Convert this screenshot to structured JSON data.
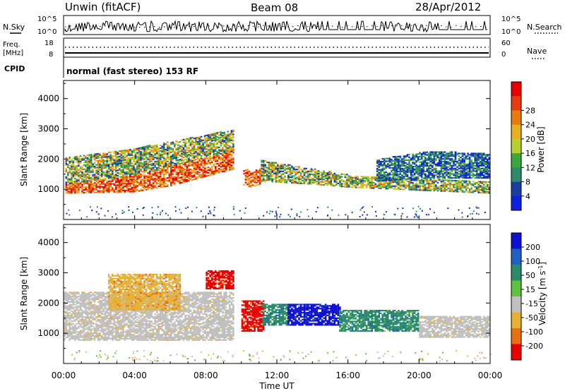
{
  "header": {
    "title": "Unwin (fitACF)",
    "beam": "Beam 08",
    "date": "28/Apr/2012"
  },
  "noise_panel": {
    "left_label": "N.Sky",
    "left_ticks": [
      "10^5",
      "10^0"
    ],
    "right_label": "N.Search",
    "right_ticks": [
      "10^5",
      "10^0"
    ]
  },
  "freq_panel": {
    "left_label_1": "Freq.",
    "left_label_2": "[MHz]",
    "left_ticks": [
      "18",
      "8"
    ],
    "right_label": "Nave",
    "right_ticks": [
      "60",
      "0"
    ]
  },
  "cpid": {
    "label": "CPID",
    "value": "normal (fast stereo) 153 RF"
  },
  "chart_data": [
    {
      "type": "heatmap",
      "name": "power",
      "ylabel": "Slant Range [km]",
      "yticks": [
        "1000",
        "2000",
        "3000",
        "4000"
      ],
      "ylim": [
        0,
        4600
      ],
      "xlim": [
        0,
        24
      ],
      "colorbar_label": "Power [dB]",
      "colorbar_ticks": [
        "4",
        "8",
        "12",
        "16",
        "20",
        "24",
        "28"
      ],
      "colorscale": [
        "#1020e0",
        "#1b3fa0",
        "#2e8a6a",
        "#3aa83a",
        "#b8d030",
        "#e8b020",
        "#e87a10",
        "#e83a10",
        "#e80000"
      ],
      "scatter_bands": [
        {
          "t": [
            0.0,
            4.0,
            6.0,
            9.5
          ],
          "lo": [
            900,
            950,
            1150,
            1700
          ],
          "hi": [
            1200,
            1500,
            1800,
            2300
          ],
          "level": "high"
        },
        {
          "t": [
            0.0,
            4.0,
            6.0,
            9.5
          ],
          "lo": [
            1200,
            1500,
            1800,
            2300
          ],
          "hi": [
            2100,
            2400,
            2600,
            3000
          ],
          "level": "mid"
        },
        {
          "t": [
            10.0,
            10.5,
            11.0
          ],
          "lo": [
            1200,
            1100,
            1200
          ],
          "hi": [
            1800,
            1600,
            1700
          ],
          "level": "high"
        },
        {
          "t": [
            11.0,
            14.0,
            16.0,
            20.0,
            24.0
          ],
          "lo": [
            1300,
            1200,
            1100,
            1000,
            900
          ],
          "hi": [
            2000,
            1700,
            1500,
            1400,
            1300
          ],
          "level": "mid"
        },
        {
          "t": [
            17.5,
            20.5,
            24.0
          ],
          "lo": [
            1300,
            1400,
            1400
          ],
          "hi": [
            2000,
            2300,
            2200
          ],
          "level": "low"
        }
      ]
    },
    {
      "type": "heatmap",
      "name": "velocity",
      "ylabel": "Slant Range [km]",
      "yticks": [
        "1000",
        "2000",
        "3000",
        "4000"
      ],
      "ylim": [
        0,
        4600
      ],
      "xlim": [
        0,
        24
      ],
      "colorbar_label": "Velocity [m s^-1]",
      "colorbar_ticks": [
        "200",
        "100",
        "50",
        "15",
        "-15",
        "-50",
        "-100",
        "-200"
      ],
      "colorscale": [
        "#1010d0",
        "#2060c0",
        "#2a8a6a",
        "#60c040",
        "#c0c0c0",
        "#e8b030",
        "#e87010",
        "#e80000"
      ],
      "regions": [
        {
          "t": [
            0.0,
            9.5
          ],
          "lo": 800,
          "hi": 2400,
          "value": "ground"
        },
        {
          "t": [
            2.5,
            6.5
          ],
          "lo": 1800,
          "hi": 3000,
          "value": "-50"
        },
        {
          "t": [
            8.0,
            9.5
          ],
          "lo": 2500,
          "hi": 3100,
          "value": "-200"
        },
        {
          "t": [
            10.0,
            11.2
          ],
          "lo": 1100,
          "hi": 2100,
          "value": "-200"
        },
        {
          "t": [
            11.2,
            12.6
          ],
          "lo": 1300,
          "hi": 2000,
          "value": "50"
        },
        {
          "t": [
            12.6,
            15.5
          ],
          "lo": 1300,
          "hi": 2000,
          "value": "200"
        },
        {
          "t": [
            15.5,
            20.0
          ],
          "lo": 1100,
          "hi": 1800,
          "value": "50"
        },
        {
          "t": [
            20.0,
            24.0
          ],
          "lo": 900,
          "hi": 1600,
          "value": "ground"
        }
      ]
    }
  ],
  "xaxis": {
    "ticks": [
      "00:00",
      "04:00",
      "08:00",
      "12:00",
      "16:00",
      "20:00",
      "00:00"
    ],
    "label": "Time UT"
  }
}
